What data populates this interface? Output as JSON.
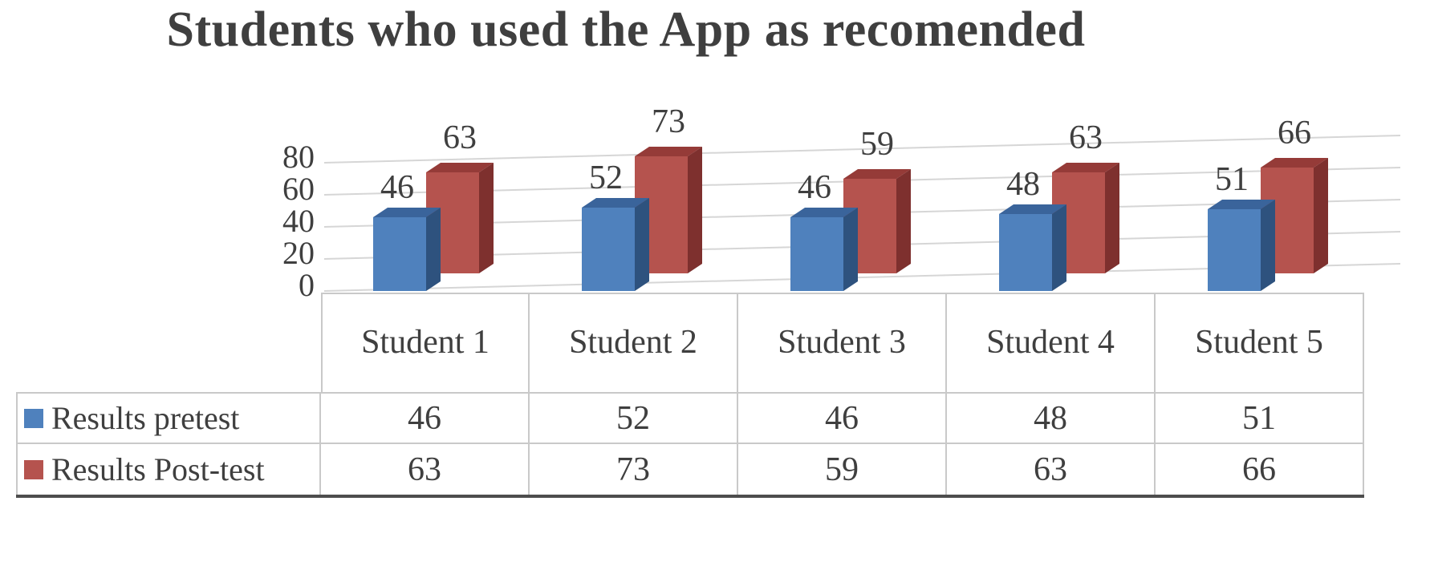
{
  "title": "Students who used the App as recomended",
  "chart_data": {
    "type": "bar",
    "subtype": "3d-clustered-column",
    "title": "Students who used the App as recomended",
    "categories": [
      "Student 1",
      "Student 2",
      "Student 3",
      "Student 4",
      "Student 5"
    ],
    "series": [
      {
        "name": "Results pretest",
        "values": [
          46,
          52,
          46,
          48,
          51
        ],
        "colors": {
          "front": "#4F81BD",
          "top": "#3A649B",
          "side": "#2E527E"
        }
      },
      {
        "name": "Results Post-test",
        "values": [
          63,
          73,
          59,
          63,
          66
        ],
        "colors": {
          "front": "#B5534E",
          "top": "#953B38",
          "side": "#7E302E"
        }
      }
    ],
    "ylim": [
      0,
      80
    ],
    "yticks": [
      0,
      20,
      40,
      60,
      80
    ],
    "grid": true,
    "data_labels": true,
    "legend_position": "left-of-data-table",
    "data_table": true
  },
  "colors": {
    "text": "#404040",
    "grid": "#d6d6d6",
    "table_border": "#c9c9c9",
    "table_bottom_border": "#4d4d4d",
    "background": "#ffffff"
  }
}
